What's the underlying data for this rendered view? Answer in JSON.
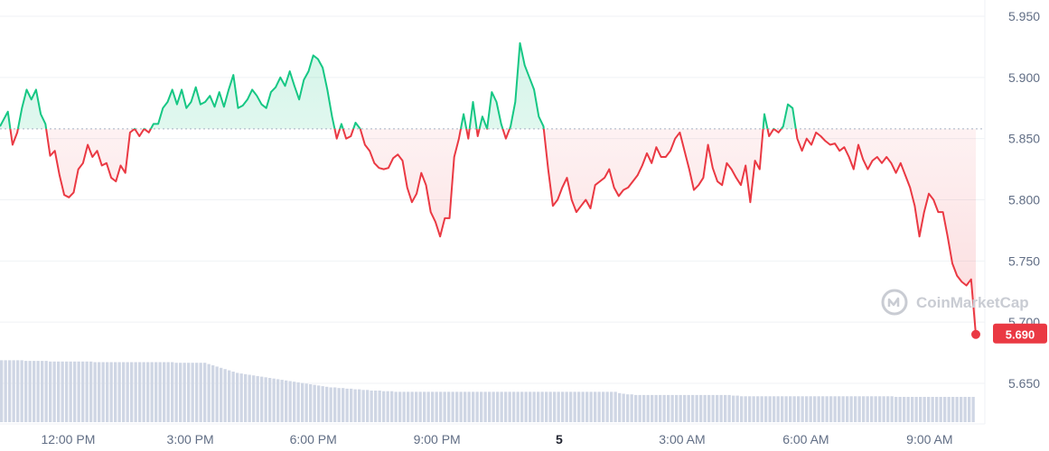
{
  "chart_data": {
    "type": "line",
    "series": [
      {
        "values": [
          [
            0,
            5.86
          ],
          [
            1,
            5.872
          ],
          [
            1.6,
            5.845
          ],
          [
            2.2,
            5.855
          ],
          [
            2.8,
            5.875
          ],
          [
            3.4,
            5.89
          ],
          [
            4.0,
            5.882
          ],
          [
            4.6,
            5.89
          ],
          [
            5.2,
            5.87
          ],
          [
            5.8,
            5.862
          ],
          [
            6.4,
            5.836
          ],
          [
            7.0,
            5.84
          ],
          [
            7.6,
            5.82
          ],
          [
            8.2,
            5.804
          ],
          [
            8.8,
            5.802
          ],
          [
            9.4,
            5.806
          ],
          [
            10,
            5.825
          ],
          [
            10.6,
            5.83
          ],
          [
            11.2,
            5.845
          ],
          [
            11.8,
            5.835
          ],
          [
            12.4,
            5.84
          ],
          [
            13,
            5.828
          ],
          [
            13.6,
            5.83
          ],
          [
            14.2,
            5.818
          ],
          [
            14.8,
            5.815
          ],
          [
            15.4,
            5.828
          ],
          [
            16,
            5.822
          ],
          [
            16.6,
            5.855
          ],
          [
            17.2,
            5.858
          ],
          [
            17.8,
            5.852
          ],
          [
            18.4,
            5.858
          ],
          [
            19.0,
            5.855
          ],
          [
            19.6,
            5.862
          ],
          [
            20.2,
            5.862
          ],
          [
            20.8,
            5.875
          ],
          [
            21.4,
            5.88
          ],
          [
            22.0,
            5.89
          ],
          [
            22.6,
            5.878
          ],
          [
            23.2,
            5.89
          ],
          [
            23.8,
            5.875
          ],
          [
            24.4,
            5.88
          ],
          [
            25.0,
            5.892
          ],
          [
            25.6,
            5.878
          ],
          [
            26.2,
            5.88
          ],
          [
            26.8,
            5.885
          ],
          [
            27.4,
            5.876
          ],
          [
            28.0,
            5.888
          ],
          [
            28.6,
            5.876
          ],
          [
            29.2,
            5.89
          ],
          [
            29.8,
            5.902
          ],
          [
            30.4,
            5.875
          ],
          [
            31.0,
            5.877
          ],
          [
            31.6,
            5.882
          ],
          [
            32.2,
            5.89
          ],
          [
            32.8,
            5.885
          ],
          [
            33.4,
            5.878
          ],
          [
            34.0,
            5.875
          ],
          [
            34.6,
            5.888
          ],
          [
            35.2,
            5.892
          ],
          [
            35.8,
            5.9
          ],
          [
            36.4,
            5.893
          ],
          [
            37.0,
            5.905
          ],
          [
            37.6,
            5.893
          ],
          [
            38.2,
            5.882
          ],
          [
            38.8,
            5.898
          ],
          [
            39.4,
            5.905
          ],
          [
            40.0,
            5.918
          ],
          [
            40.6,
            5.915
          ],
          [
            41.2,
            5.908
          ],
          [
            41.8,
            5.89
          ],
          [
            42.4,
            5.868
          ],
          [
            43.0,
            5.85
          ],
          [
            43.6,
            5.862
          ],
          [
            44.2,
            5.85
          ],
          [
            44.8,
            5.852
          ],
          [
            45.4,
            5.863
          ],
          [
            46.0,
            5.858
          ],
          [
            46.6,
            5.845
          ],
          [
            47.2,
            5.84
          ],
          [
            47.8,
            5.83
          ],
          [
            48.4,
            5.826
          ],
          [
            49.0,
            5.825
          ],
          [
            49.6,
            5.826
          ],
          [
            50.2,
            5.834
          ],
          [
            50.8,
            5.837
          ],
          [
            51.4,
            5.832
          ],
          [
            52.0,
            5.81
          ],
          [
            52.6,
            5.798
          ],
          [
            53.2,
            5.805
          ],
          [
            53.8,
            5.822
          ],
          [
            54.4,
            5.812
          ],
          [
            55.0,
            5.79
          ],
          [
            55.6,
            5.782
          ],
          [
            56.2,
            5.77
          ],
          [
            56.8,
            5.785
          ],
          [
            57.4,
            5.785
          ],
          [
            58.0,
            5.835
          ],
          [
            58.6,
            5.85
          ],
          [
            59.2,
            5.87
          ],
          [
            59.8,
            5.85
          ],
          [
            60.4,
            5.88
          ],
          [
            61.0,
            5.852
          ],
          [
            61.6,
            5.868
          ],
          [
            62.2,
            5.858
          ],
          [
            62.8,
            5.888
          ],
          [
            63.4,
            5.88
          ],
          [
            64.0,
            5.862
          ],
          [
            64.6,
            5.85
          ],
          [
            65.2,
            5.86
          ],
          [
            65.8,
            5.88
          ],
          [
            66.4,
            5.928
          ],
          [
            67.0,
            5.91
          ],
          [
            67.6,
            5.9
          ],
          [
            68.2,
            5.89
          ],
          [
            68.8,
            5.868
          ],
          [
            69.4,
            5.86
          ],
          [
            70.0,
            5.825
          ],
          [
            70.6,
            5.795
          ],
          [
            71.2,
            5.8
          ],
          [
            71.8,
            5.81
          ],
          [
            72.4,
            5.818
          ],
          [
            73.0,
            5.8
          ],
          [
            73.6,
            5.79
          ],
          [
            74.2,
            5.795
          ],
          [
            74.8,
            5.8
          ],
          [
            75.4,
            5.793
          ],
          [
            76.0,
            5.812
          ],
          [
            76.6,
            5.815
          ],
          [
            77.2,
            5.818
          ],
          [
            77.8,
            5.825
          ],
          [
            78.4,
            5.81
          ],
          [
            79.0,
            5.803
          ],
          [
            79.6,
            5.808
          ],
          [
            80.2,
            5.81
          ],
          [
            80.8,
            5.815
          ],
          [
            81.4,
            5.82
          ],
          [
            82.0,
            5.828
          ],
          [
            82.6,
            5.838
          ],
          [
            83.2,
            5.83
          ],
          [
            83.8,
            5.843
          ],
          [
            84.4,
            5.835
          ],
          [
            85.0,
            5.835
          ],
          [
            85.6,
            5.84
          ],
          [
            86.2,
            5.85
          ],
          [
            86.8,
            5.855
          ],
          [
            87.4,
            5.84
          ],
          [
            88.0,
            5.825
          ],
          [
            88.6,
            5.808
          ],
          [
            89.2,
            5.812
          ],
          [
            89.8,
            5.818
          ],
          [
            90.4,
            5.845
          ],
          [
            91.0,
            5.826
          ],
          [
            91.6,
            5.815
          ],
          [
            92.2,
            5.812
          ],
          [
            92.8,
            5.83
          ],
          [
            93.4,
            5.825
          ],
          [
            94.0,
            5.818
          ],
          [
            94.6,
            5.812
          ],
          [
            95.2,
            5.828
          ],
          [
            95.8,
            5.798
          ],
          [
            96.4,
            5.832
          ],
          [
            97.0,
            5.825
          ],
          [
            97.6,
            5.87
          ],
          [
            98.2,
            5.852
          ],
          [
            98.8,
            5.858
          ],
          [
            99.4,
            5.855
          ],
          [
            100.0,
            5.86
          ],
          [
            100.6,
            5.878
          ],
          [
            101.2,
            5.875
          ],
          [
            101.8,
            5.85
          ],
          [
            102.4,
            5.84
          ],
          [
            103.0,
            5.85
          ],
          [
            103.6,
            5.845
          ],
          [
            104.2,
            5.855
          ],
          [
            104.8,
            5.852
          ],
          [
            105.4,
            5.848
          ],
          [
            106.0,
            5.845
          ],
          [
            106.6,
            5.846
          ],
          [
            107.2,
            5.84
          ],
          [
            107.8,
            5.843
          ],
          [
            108.4,
            5.835
          ],
          [
            109.0,
            5.825
          ],
          [
            109.6,
            5.845
          ],
          [
            110.2,
            5.833
          ],
          [
            110.8,
            5.825
          ],
          [
            111.4,
            5.832
          ],
          [
            112.0,
            5.835
          ],
          [
            112.6,
            5.83
          ],
          [
            113.2,
            5.835
          ],
          [
            113.8,
            5.83
          ],
          [
            114.4,
            5.822
          ],
          [
            115.0,
            5.83
          ],
          [
            115.6,
            5.82
          ],
          [
            116.2,
            5.81
          ],
          [
            116.8,
            5.795
          ],
          [
            117.4,
            5.77
          ],
          [
            118.0,
            5.79
          ],
          [
            118.6,
            5.805
          ],
          [
            119.2,
            5.8
          ],
          [
            119.8,
            5.79
          ],
          [
            120.4,
            5.79
          ],
          [
            121.0,
            5.77
          ],
          [
            121.6,
            5.748
          ],
          [
            122.2,
            5.738
          ],
          [
            122.8,
            5.733
          ],
          [
            123.4,
            5.73
          ],
          [
            124.0,
            5.735
          ],
          [
            124.6,
            5.69
          ]
        ]
      }
    ],
    "reference_price": 5.858,
    "current_price": "5.690",
    "ylim": [
      5.625,
      5.965
    ],
    "yticks": [
      "5.650",
      "5.700",
      "5.750",
      "5.800",
      "5.850",
      "5.900",
      "5.950"
    ],
    "xticks": [
      "12:00 PM",
      "3:00 PM",
      "6:00 PM",
      "9:00 PM",
      "5",
      "3:00 AM",
      "6:00 AM",
      "9:00 AM"
    ],
    "xtick_positions": [
      8.7,
      24.3,
      40.0,
      55.8,
      71.4,
      87.1,
      102.9,
      118.7
    ],
    "x_range": [
      0,
      124.6
    ],
    "volume": [
      0.98,
      0.98,
      0.98,
      0.98,
      0.98,
      0.98,
      0.97,
      0.97,
      0.97,
      0.97,
      0.97,
      0.97,
      0.96,
      0.96,
      0.96,
      0.96,
      0.96,
      0.96,
      0.96,
      0.96,
      0.96,
      0.96,
      0.96,
      0.95,
      0.95,
      0.95,
      0.95,
      0.95,
      0.95,
      0.95,
      0.95,
      0.95,
      0.95,
      0.95,
      0.95,
      0.95,
      0.95,
      0.95,
      0.95,
      0.95,
      0.95,
      0.95,
      0.95,
      0.94,
      0.94,
      0.94,
      0.94,
      0.94,
      0.94,
      0.94,
      0.94,
      0.92,
      0.9,
      0.88,
      0.86,
      0.84,
      0.82,
      0.8,
      0.78,
      0.77,
      0.76,
      0.75,
      0.74,
      0.73,
      0.72,
      0.71,
      0.7,
      0.69,
      0.68,
      0.67,
      0.66,
      0.65,
      0.64,
      0.63,
      0.62,
      0.61,
      0.6,
      0.59,
      0.58,
      0.57,
      0.56,
      0.55,
      0.55,
      0.54,
      0.54,
      0.53,
      0.53,
      0.52,
      0.52,
      0.51,
      0.51,
      0.5,
      0.5,
      0.5,
      0.49,
      0.49,
      0.49,
      0.48,
      0.48,
      0.48,
      0.48,
      0.48,
      0.48,
      0.48,
      0.48,
      0.48,
      0.48,
      0.48,
      0.48,
      0.48,
      0.48,
      0.48,
      0.48,
      0.48,
      0.48,
      0.48,
      0.48,
      0.48,
      0.48,
      0.48,
      0.48,
      0.48,
      0.48,
      0.48,
      0.48,
      0.48,
      0.48,
      0.48,
      0.48,
      0.48,
      0.48,
      0.48,
      0.48,
      0.48,
      0.48,
      0.48,
      0.48,
      0.48,
      0.48,
      0.48,
      0.48,
      0.48,
      0.48,
      0.48,
      0.48,
      0.48,
      0.48,
      0.48,
      0.48,
      0.48,
      0.48,
      0.48,
      0.46,
      0.45,
      0.44,
      0.44,
      0.43,
      0.43,
      0.43,
      0.43,
      0.43,
      0.43,
      0.43,
      0.43,
      0.43,
      0.43,
      0.43,
      0.43,
      0.43,
      0.43,
      0.43,
      0.43,
      0.43,
      0.43,
      0.43,
      0.43,
      0.43,
      0.43,
      0.43,
      0.43,
      0.42,
      0.42,
      0.41,
      0.41,
      0.41,
      0.41,
      0.41,
      0.41,
      0.41,
      0.41,
      0.41,
      0.41,
      0.41,
      0.41,
      0.41,
      0.41,
      0.41,
      0.41,
      0.41,
      0.41,
      0.41,
      0.41,
      0.41,
      0.41,
      0.41,
      0.41,
      0.41,
      0.41,
      0.41,
      0.41,
      0.41,
      0.41,
      0.41,
      0.41,
      0.41,
      0.41,
      0.41,
      0.41,
      0.41,
      0.41,
      0.4,
      0.4,
      0.4,
      0.4,
      0.4,
      0.4,
      0.4,
      0.4,
      0.4,
      0.4,
      0.4,
      0.4,
      0.4,
      0.4,
      0.4,
      0.4,
      0.4,
      0.4,
      0.4,
      0.4
    ]
  },
  "watermark": "CoinMarketCap",
  "colors": {
    "up": "#16c784",
    "down": "#ea3943",
    "grid": "#eff2f5",
    "axis_text": "#616e85",
    "volume_bar": "#cfd6e4",
    "watermark": "#c9ccd3"
  },
  "icons": {
    "watermark": "coinmarketcap-logo-icon"
  }
}
